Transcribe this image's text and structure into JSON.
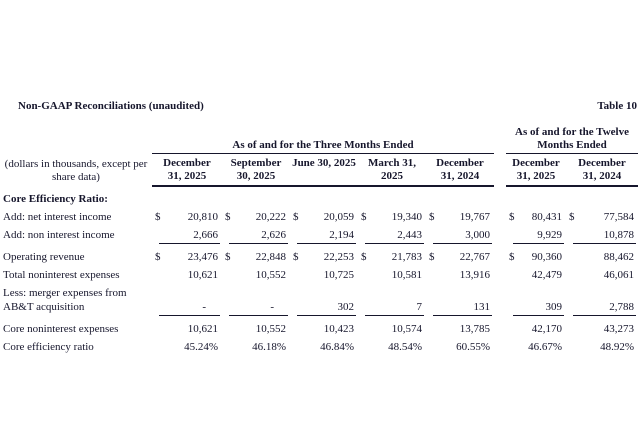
{
  "page": {
    "title": "Non-GAAP Reconciliations (unaudited)",
    "table_label": "Table 10"
  },
  "ink_color": "#16162c",
  "table": {
    "currency_symbol": "$",
    "left_header_line1": "(dollars in thousands, except per",
    "left_header_line2": "share data)",
    "group_headers": {
      "three_months": "As of and for the Three Months Ended",
      "twelve_months_line1": "As of and for the Twelve",
      "twelve_months_line2": "Months Ended"
    },
    "column_headers": [
      {
        "line1": "December",
        "line2": "31, 2025"
      },
      {
        "line1": "September",
        "line2": "30, 2025"
      },
      {
        "line1": "June 30, 2025",
        "line2": ""
      },
      {
        "line1": "March 31,",
        "line2": "2025"
      },
      {
        "line1": "December",
        "line2": "31, 2024"
      },
      {
        "line1": "December",
        "line2": "31, 2025"
      },
      {
        "line1": "December",
        "line2": "31, 2024"
      }
    ],
    "rows": [
      {
        "label": "Core Efficiency Ratio:",
        "bold": true,
        "values": null
      },
      {
        "label": "Add: net interest income",
        "dollar_cols": [
          1,
          1,
          1,
          1,
          1,
          1,
          1
        ],
        "values": [
          "20,810",
          "20,222",
          "20,059",
          "19,340",
          "19,767",
          "80,431",
          "77,584"
        ]
      },
      {
        "label": "Add: non interest income",
        "underline": true,
        "values": [
          "2,666",
          "2,626",
          "2,194",
          "2,443",
          "3,000",
          "9,929",
          "10,878"
        ]
      },
      {
        "label": "Operating revenue",
        "gap_before": true,
        "dollar_cols": [
          1,
          1,
          1,
          1,
          1,
          1,
          0
        ],
        "values": [
          "23,476",
          "22,848",
          "22,253",
          "21,783",
          "22,767",
          "90,360",
          "88,462"
        ]
      },
      {
        "label": "Total noninterest expenses",
        "values": [
          "10,621",
          "10,552",
          "10,725",
          "10,581",
          "13,916",
          "42,479",
          "46,061"
        ]
      },
      {
        "label": "Less: merger expenses from",
        "tight": true,
        "values": null
      },
      {
        "label": "AB&T acquisition",
        "underline": true,
        "values": [
          "-",
          "-",
          "302",
          "7",
          "131",
          "309",
          "2,788"
        ]
      },
      {
        "label": "Core noninterest expenses",
        "gap_before": true,
        "values": [
          "10,621",
          "10,552",
          "10,423",
          "10,574",
          "13,785",
          "42,170",
          "43,273"
        ]
      },
      {
        "label": "Core efficiency ratio",
        "values": [
          "45.24%",
          "46.18%",
          "46.84%",
          "48.54%",
          "60.55%",
          "46.67%",
          "48.92%"
        ]
      }
    ]
  }
}
